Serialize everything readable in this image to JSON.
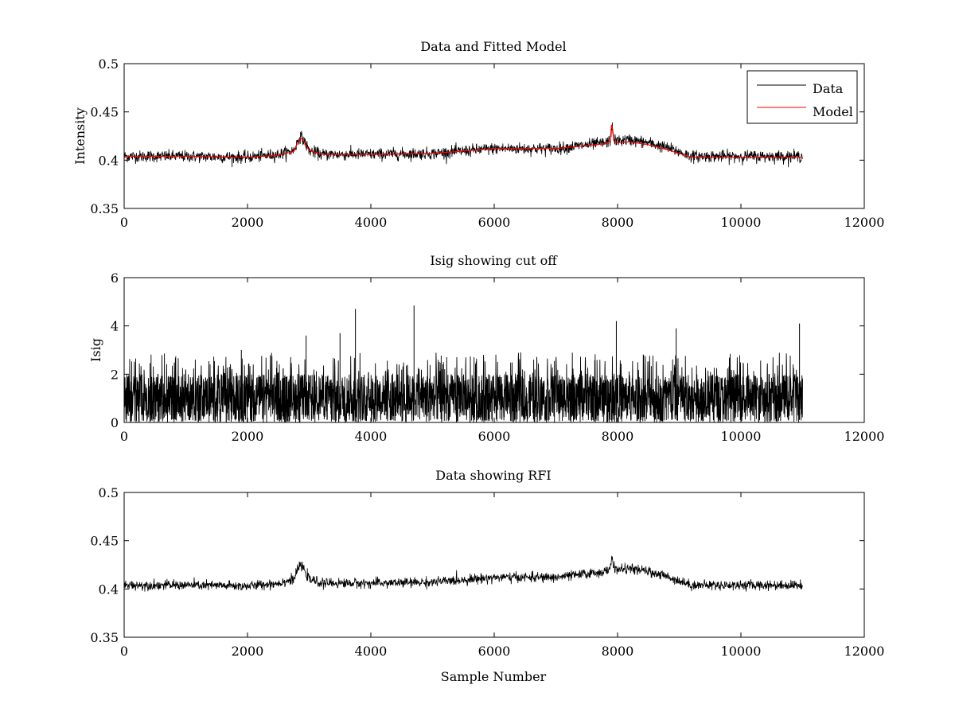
{
  "chart_data": [
    {
      "type": "line",
      "title": "Data and Fitted Model",
      "xlabel": "",
      "ylabel": "Intensity",
      "xlim": [
        0,
        12000
      ],
      "ylim": [
        0.35,
        0.5
      ],
      "xticks": [
        0,
        2000,
        4000,
        6000,
        8000,
        10000,
        12000
      ],
      "yticks": [
        0.35,
        0.4,
        0.45,
        0.5
      ],
      "xtick_labels": [
        "0",
        "2000",
        "4000",
        "6000",
        "8000",
        "10000",
        "12000"
      ],
      "ytick_labels": [
        "0.35",
        "0.4",
        "0.45",
        "0.5"
      ],
      "legend": {
        "position": "top-right",
        "entries": [
          "Data",
          "Model"
        ]
      },
      "series": [
        {
          "name": "Data",
          "color": "#000000",
          "x_range": [
            0,
            11000
          ],
          "noise_amplitude": 0.0055,
          "note": "noisy trace around the model baseline",
          "points": [
            [
              0,
              0.404
            ],
            [
              1000,
              0.404
            ],
            [
              2000,
              0.403
            ],
            [
              2500,
              0.406
            ],
            [
              2750,
              0.41
            ],
            [
              2850,
              0.425
            ],
            [
              2900,
              0.422
            ],
            [
              3000,
              0.41
            ],
            [
              3200,
              0.406
            ],
            [
              4000,
              0.406
            ],
            [
              5000,
              0.407
            ],
            [
              6000,
              0.412
            ],
            [
              7000,
              0.412
            ],
            [
              7800,
              0.418
            ],
            [
              7880,
              0.42
            ],
            [
              7910,
              0.436
            ],
            [
              7930,
              0.425
            ],
            [
              7960,
              0.42
            ],
            [
              8200,
              0.421
            ],
            [
              8500,
              0.418
            ],
            [
              8800,
              0.413
            ],
            [
              9200,
              0.404
            ],
            [
              10000,
              0.404
            ],
            [
              11000,
              0.404
            ]
          ]
        },
        {
          "name": "Model",
          "color": "#ff0000",
          "x_range": [
            0,
            11000
          ],
          "points": [
            [
              0,
              0.404
            ],
            [
              1000,
              0.404
            ],
            [
              2000,
              0.403
            ],
            [
              2500,
              0.405
            ],
            [
              2750,
              0.409
            ],
            [
              2850,
              0.423
            ],
            [
              2900,
              0.421
            ],
            [
              3000,
              0.41
            ],
            [
              3200,
              0.406
            ],
            [
              4000,
              0.406
            ],
            [
              5000,
              0.407
            ],
            [
              6000,
              0.412
            ],
            [
              7000,
              0.412
            ],
            [
              7800,
              0.417
            ],
            [
              7880,
              0.42
            ],
            [
              7910,
              0.443
            ],
            [
              7930,
              0.421
            ],
            [
              7960,
              0.418
            ],
            [
              8200,
              0.419
            ],
            [
              8500,
              0.416
            ],
            [
              8800,
              0.411
            ],
            [
              9200,
              0.403
            ],
            [
              10000,
              0.403
            ],
            [
              11000,
              0.403
            ]
          ]
        }
      ]
    },
    {
      "type": "line",
      "title": "Isig showing cut off",
      "xlabel": "",
      "ylabel": "Isig",
      "xlim": [
        0,
        12000
      ],
      "ylim": [
        0,
        6
      ],
      "xticks": [
        0,
        2000,
        4000,
        6000,
        8000,
        10000,
        12000
      ],
      "yticks": [
        0,
        2,
        4,
        6
      ],
      "xtick_labels": [
        "0",
        "2000",
        "4000",
        "6000",
        "8000",
        "10000",
        "12000"
      ],
      "ytick_labels": [
        "0",
        "2",
        "4",
        "6"
      ],
      "series": [
        {
          "name": "Isig",
          "color": "#000000",
          "x_range": [
            0,
            11000
          ],
          "typical_max": 2.0,
          "notable_peaks": [
            [
              3750,
              4.7
            ],
            [
              4700,
              4.85
            ],
            [
              7980,
              4.2
            ],
            [
              10950,
              4.1
            ],
            [
              8950,
              3.9
            ],
            [
              2950,
              3.6
            ],
            [
              3500,
              3.7
            ],
            [
              1900,
              3.0
            ]
          ]
        }
      ]
    },
    {
      "type": "line",
      "title": "Data showing RFI",
      "xlabel": "Sample Number",
      "ylabel": "",
      "xlim": [
        0,
        12000
      ],
      "ylim": [
        0.35,
        0.5
      ],
      "xticks": [
        0,
        2000,
        4000,
        6000,
        8000,
        10000,
        12000
      ],
      "yticks": [
        0.35,
        0.4,
        0.45,
        0.5
      ],
      "xtick_labels": [
        "0",
        "2000",
        "4000",
        "6000",
        "8000",
        "10000",
        "12000"
      ],
      "ytick_labels": [
        "0.35",
        "0.4",
        "0.45",
        "0.5"
      ],
      "series": [
        {
          "name": "Data",
          "color": "#000000",
          "x_range": [
            0,
            11000
          ],
          "noise_amplitude": 0.0045,
          "points": [
            [
              0,
              0.404
            ],
            [
              1000,
              0.404
            ],
            [
              2000,
              0.403
            ],
            [
              2500,
              0.406
            ],
            [
              2750,
              0.41
            ],
            [
              2850,
              0.425
            ],
            [
              2900,
              0.422
            ],
            [
              3000,
              0.41
            ],
            [
              3200,
              0.406
            ],
            [
              4000,
              0.406
            ],
            [
              5000,
              0.407
            ],
            [
              6000,
              0.412
            ],
            [
              7000,
              0.412
            ],
            [
              7800,
              0.418
            ],
            [
              7880,
              0.42
            ],
            [
              7910,
              0.436
            ],
            [
              7930,
              0.425
            ],
            [
              7960,
              0.42
            ],
            [
              8200,
              0.421
            ],
            [
              8500,
              0.418
            ],
            [
              8800,
              0.413
            ],
            [
              9200,
              0.404
            ],
            [
              10000,
              0.404
            ],
            [
              11000,
              0.404
            ]
          ]
        }
      ]
    }
  ]
}
